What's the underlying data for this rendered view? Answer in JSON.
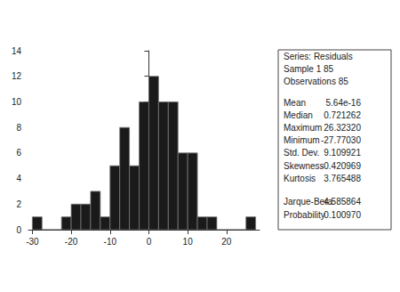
{
  "chart_data": {
    "type": "histogram",
    "bins": [
      -30,
      -27.5,
      -25,
      -22.5,
      -20,
      -17.5,
      -15,
      -12.5,
      -10,
      -7.5,
      -5,
      -2.5,
      0,
      2.5,
      5,
      7.5,
      10,
      12.5,
      15,
      17.5,
      20,
      22.5,
      25,
      27.5
    ],
    "counts": [
      1,
      0,
      0,
      1,
      2,
      2,
      3,
      1,
      5,
      8,
      5,
      10,
      12,
      10,
      10,
      6,
      6,
      1,
      1,
      0,
      0,
      0,
      1
    ],
    "color": "#1a1a1a",
    "xlim": [
      -31,
      28.5
    ],
    "xticks": [
      -30,
      -20,
      -10,
      0,
      10,
      20
    ],
    "ylim": [
      0,
      14
    ],
    "yticks": [
      0,
      2,
      4,
      6,
      8,
      10,
      12,
      14
    ],
    "grid": false
  },
  "stats_box": {
    "header": [
      "Series: Residuals",
      "Sample 1 85",
      "Observations 85"
    ],
    "stats": [
      {
        "label": "Mean",
        "value": "5.64e-16"
      },
      {
        "label": "Median",
        "value": "0.721262"
      },
      {
        "label": "Maximum",
        "value": "26.32320"
      },
      {
        "label": "Minimum",
        "value": "-27.77030"
      },
      {
        "label": "Std. Dev.",
        "value": "9.109921"
      },
      {
        "label": "Skewness",
        "value": "-0.420969"
      },
      {
        "label": "Kurtosis",
        "value": "3.765488"
      }
    ],
    "test": [
      {
        "label": "Jarque-Bera",
        "value": "4.585864"
      },
      {
        "label": "Probability",
        "value": "0.100970"
      }
    ]
  }
}
